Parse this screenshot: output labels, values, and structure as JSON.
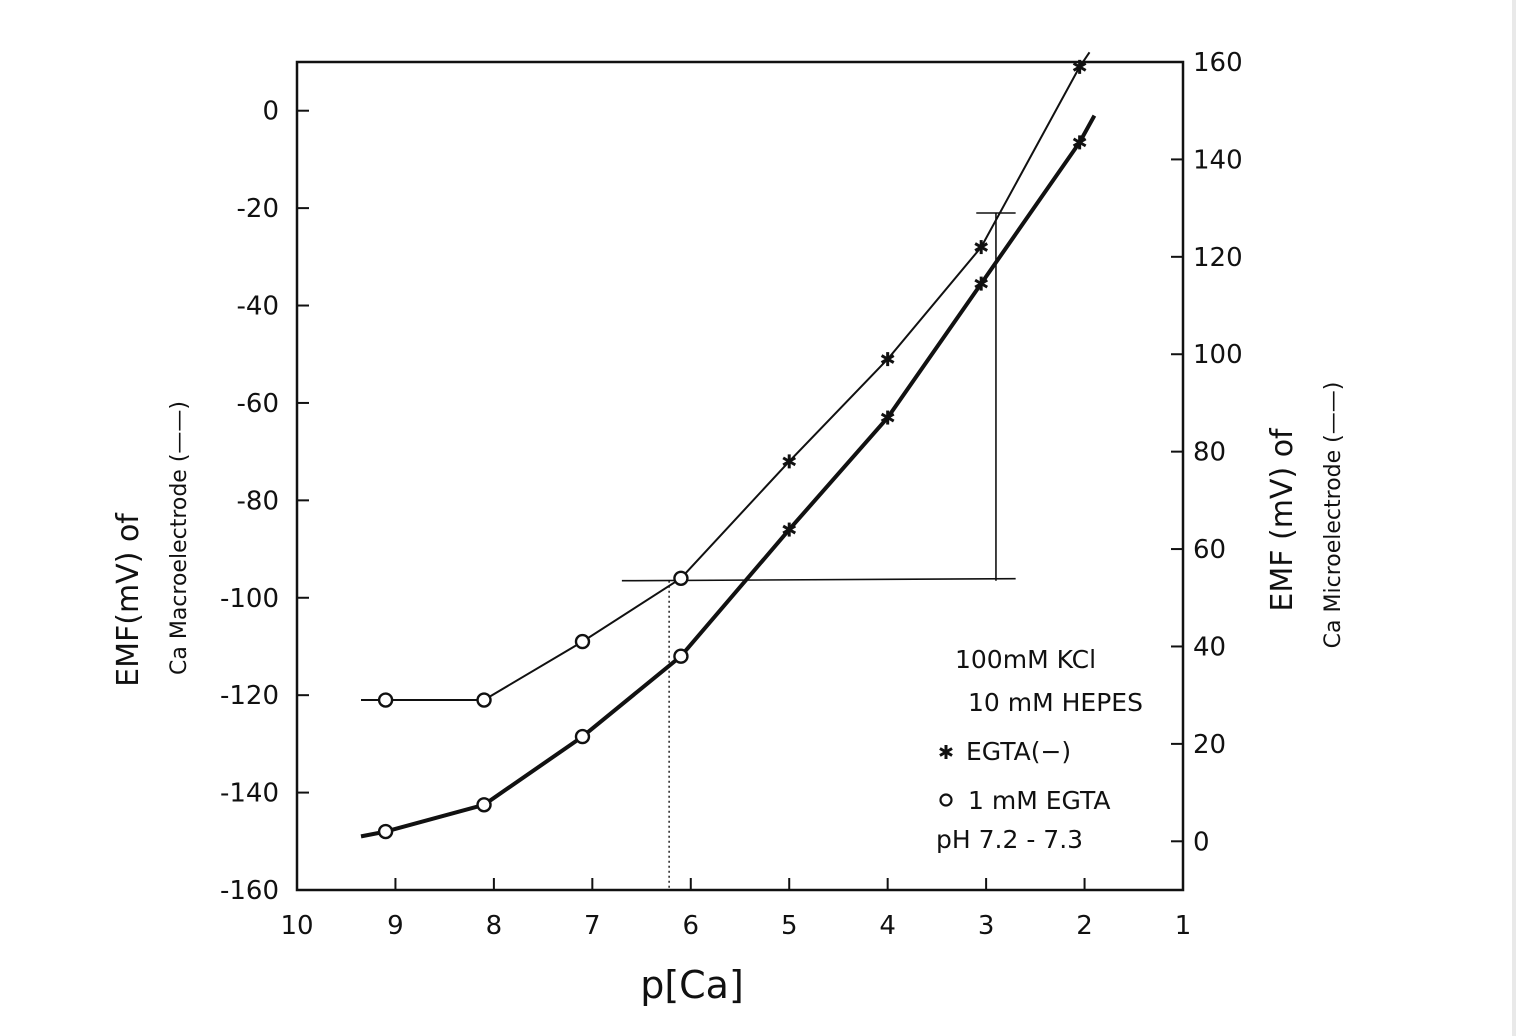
{
  "chart_data": {
    "type": "line",
    "xlabel": "p[Ca]",
    "ylabel_left": [
      "EMF(mV) of",
      "Ca Macroelectrode (——)"
    ],
    "ylabel_right": [
      "EMF (mV) of",
      "Ca Microelectrode (——)"
    ],
    "x_ticks": [
      10,
      9,
      8,
      7,
      6,
      5,
      4,
      3,
      2,
      1
    ],
    "xlim": [
      10,
      1
    ],
    "y_left_ticks": [
      0,
      -20,
      -40,
      -60,
      -80,
      -100,
      -120,
      -140,
      -160
    ],
    "ylim_left": [
      -160,
      10
    ],
    "y_right_ticks": [
      160,
      140,
      120,
      100,
      80,
      60,
      40,
      20,
      0
    ],
    "ylim_right": [
      -10,
      160
    ],
    "grid": false,
    "legend_placement": "lower-right",
    "legend": {
      "line1": "100mM KCl",
      "line2": "10 mM HEPES",
      "egta_minus": "EGTA(−)",
      "egta_one": "1 mM EGTA",
      "ph": "pH 7.2 - 7.3"
    },
    "series": [
      {
        "axis": "right",
        "style": "thin",
        "circles": [
          [
            9.1,
            29
          ],
          [
            8.1,
            29
          ],
          [
            7.1,
            41
          ],
          [
            6.1,
            54
          ]
        ],
        "stars": [
          [
            5.0,
            78
          ],
          [
            4.0,
            99
          ],
          [
            3.05,
            122
          ],
          [
            2.05,
            159
          ]
        ],
        "line_extent": [
          [
            9.35,
            29
          ],
          [
            1.95,
            162
          ]
        ]
      },
      {
        "axis": "left",
        "style": "thick",
        "circles": [
          [
            9.1,
            -148
          ],
          [
            8.1,
            -142.5
          ],
          [
            7.1,
            -128.5
          ],
          [
            6.1,
            -112
          ]
        ],
        "stars": [
          [
            5.0,
            -86
          ],
          [
            4.0,
            -63
          ],
          [
            3.05,
            -35.5
          ],
          [
            2.05,
            -6.5
          ]
        ],
        "line_extent": [
          [
            9.35,
            -149
          ],
          [
            1.9,
            -1
          ]
        ]
      }
    ],
    "annotations": {
      "horizontal_level": -96.5,
      "horizontal_x_range": [
        6.7,
        2.7
      ],
      "dotted_x": 6.22,
      "vertical_x": 2.9,
      "vertical_y_range": [
        -96.5,
        -21
      ],
      "tick_x_range": [
        3.1,
        2.7
      ],
      "tick_y": -21
    }
  }
}
